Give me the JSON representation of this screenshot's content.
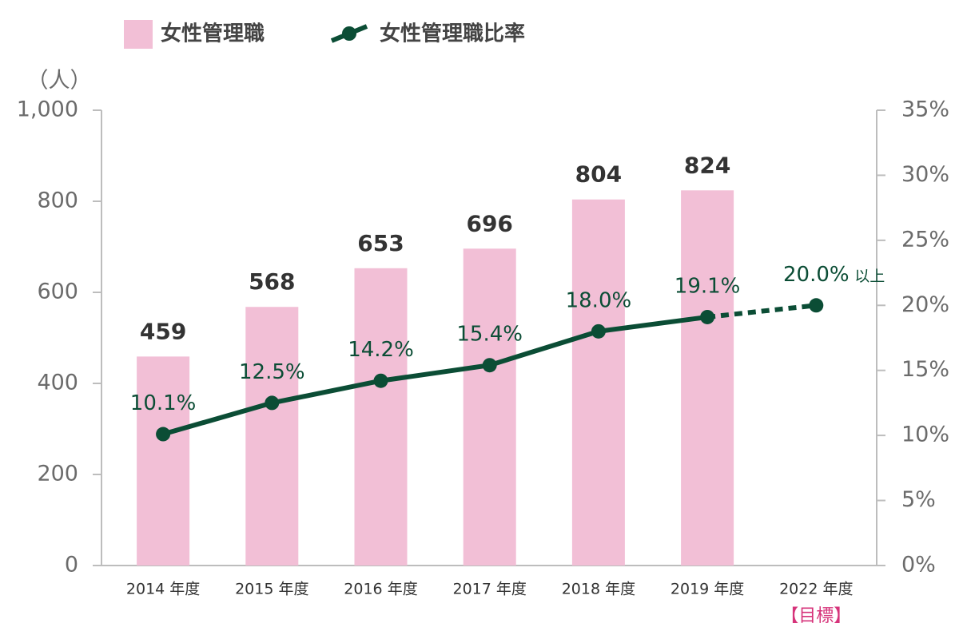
{
  "chart_data": {
    "type": "bar_line",
    "y_label": "（人）",
    "categories": [
      "2014 年度",
      "2015 年度",
      "2016 年度",
      "2017 年度",
      "2018 年度",
      "2019 年度",
      "2022 年度"
    ],
    "series": [
      {
        "name": "女性管理職",
        "type": "bar",
        "color": "#f2bfd6",
        "values": [
          459,
          568,
          653,
          696,
          804,
          824,
          null
        ]
      },
      {
        "name": "女性管理職比率",
        "type": "line",
        "axis": "y2",
        "color": "#0b4d35",
        "dashed_last": true,
        "values": [
          10.1,
          12.5,
          14.2,
          15.4,
          18.0,
          19.1,
          20.0
        ],
        "value_labels": [
          "10.1%",
          "12.5%",
          "14.2%",
          "15.4%",
          "18.0%",
          "19.1%",
          "20.0%"
        ]
      }
    ],
    "annotations": [
      "以上",
      "【目標】"
    ],
    "ylim": [
      0,
      1000
    ],
    "yticks": [
      0,
      200,
      400,
      600,
      800,
      {
        "value": 1000,
        "label": "1,000"
      }
    ],
    "y2lim": [
      0,
      35
    ],
    "y2ticks": [
      {
        "value": 0,
        "label": "0%"
      },
      {
        "value": 5,
        "label": "5%"
      },
      {
        "value": 10,
        "label": "10%"
      },
      {
        "value": 15,
        "label": "15%"
      },
      {
        "value": 20,
        "label": "20%"
      },
      {
        "value": 25,
        "label": "25%"
      },
      {
        "value": 30,
        "label": "30%"
      },
      {
        "value": 35,
        "label": "35%"
      }
    ],
    "grid": false
  }
}
